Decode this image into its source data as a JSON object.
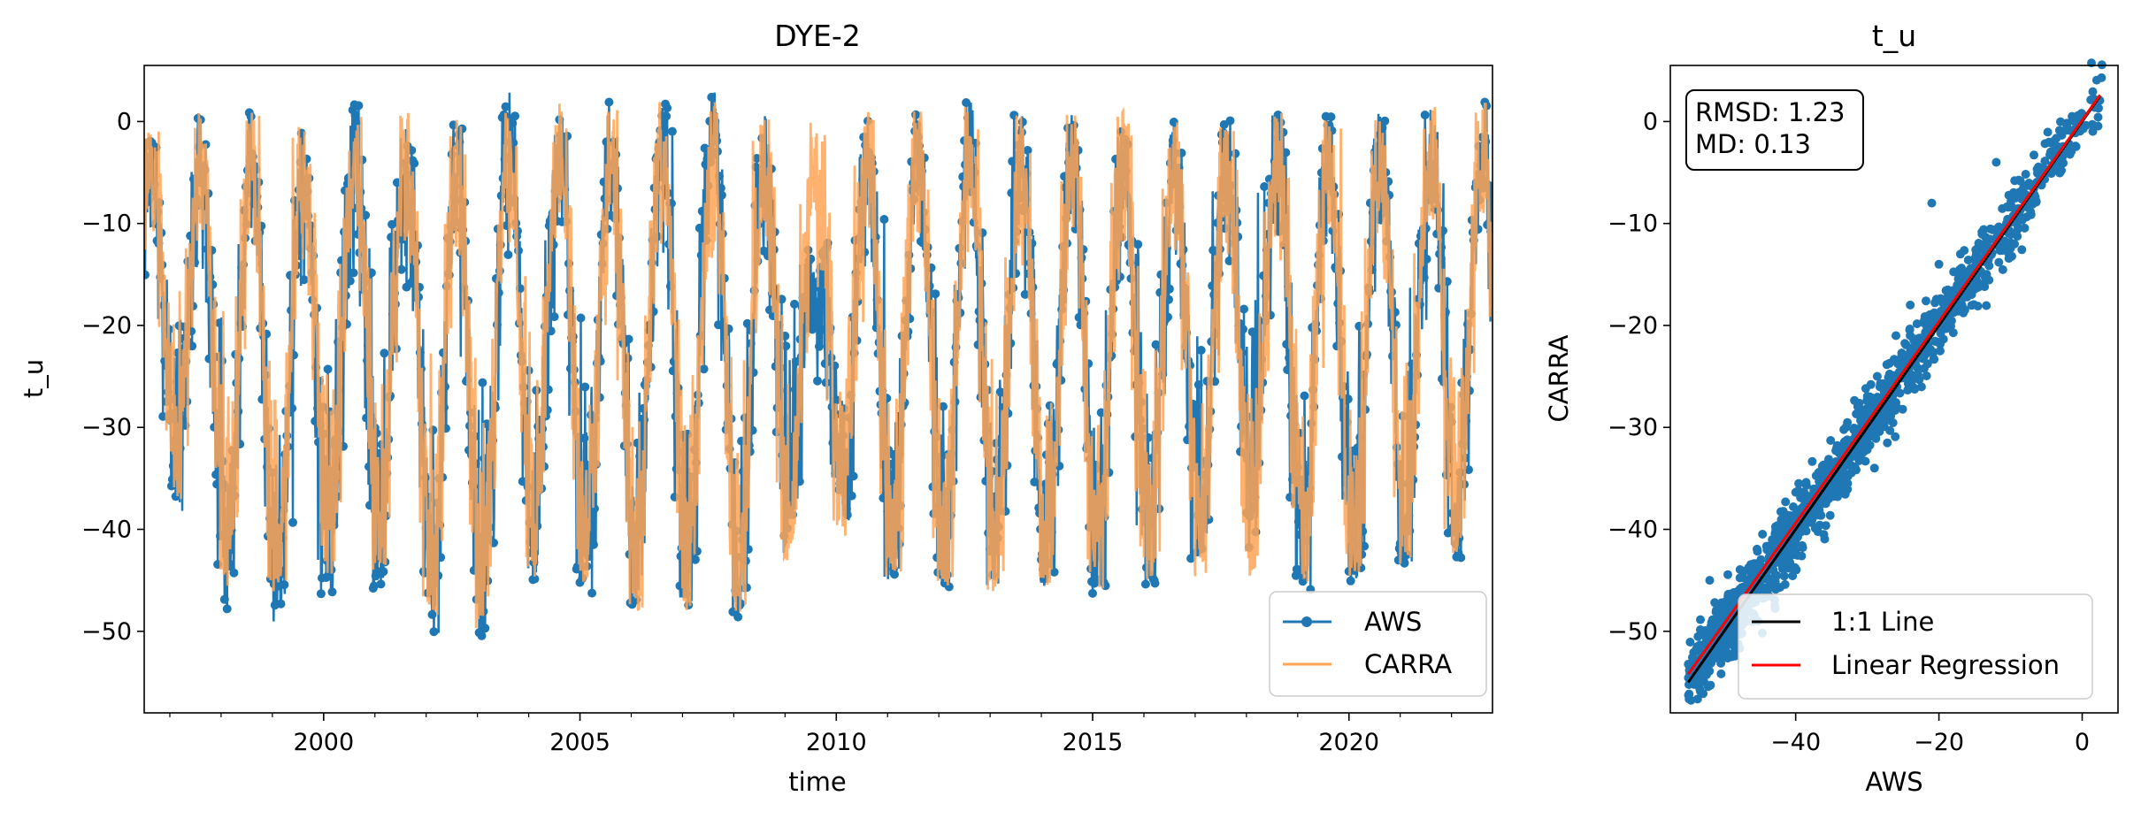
{
  "chart_data": [
    {
      "type": "line",
      "title": "DYE-2",
      "xlabel": "time",
      "ylabel": "t_u",
      "xlim": [
        1996.5,
        2022.8
      ],
      "ylim": [
        -58,
        5.5
      ],
      "x_tick_labels": [
        "2000",
        "2005",
        "2010",
        "2015",
        "2020"
      ],
      "x_ticks": [
        2000,
        2005,
        2010,
        2015,
        2020
      ],
      "y_tick_labels": [
        "0",
        "−10",
        "−20",
        "−30",
        "−40",
        "−50"
      ],
      "y_ticks": [
        0,
        -10,
        -20,
        -30,
        -40,
        -50
      ],
      "legend_position": "lower-right",
      "colors": {
        "AWS": "#1f77b4",
        "CARRA": "#ffa354"
      },
      "series": [
        {
          "name": "AWS",
          "style": "line-with-markers",
          "summary_extremes": [
            {
              "year": 1996.7,
              "max": -1,
              "min": -31
            },
            {
              "year": 1997.6,
              "max": 1,
              "min": -44
            },
            {
              "year": 1998.6,
              "max": 2,
              "min": -52
            },
            {
              "year": 1999.6,
              "max": 0,
              "min": -46
            },
            {
              "year": 2000.6,
              "max": 2,
              "min": -47
            },
            {
              "year": 2001.6,
              "max": 1,
              "min": -44
            },
            {
              "year": 2002.6,
              "max": 1,
              "min": -55
            },
            {
              "year": 2003.6,
              "max": 3,
              "min": -47
            },
            {
              "year": 2004.6,
              "max": 2,
              "min": -44
            },
            {
              "year": 2005.6,
              "max": 2,
              "min": -48
            },
            {
              "year": 2006.6,
              "max": 2,
              "min": -47
            },
            {
              "year": 2007.6,
              "max": 3,
              "min": -48
            },
            {
              "year": 2008.6,
              "max": 2,
              "min": -50
            },
            {
              "year": 2009.6,
              "max": -15,
              "min": -30
            },
            {
              "year": 2010.6,
              "max": 1,
              "min": -46
            },
            {
              "year": 2011.6,
              "max": 1,
              "min": -44
            },
            {
              "year": 2012.6,
              "max": 2,
              "min": -47
            },
            {
              "year": 2013.6,
              "max": 1,
              "min": -46
            },
            {
              "year": 2014.6,
              "max": 1,
              "min": -46
            },
            {
              "year": 2015.6,
              "max": 1,
              "min": -47
            },
            {
              "year": 2016.6,
              "max": 0,
              "min": -45
            },
            {
              "year": 2017.6,
              "max": 0,
              "min": -40
            },
            {
              "year": 2018.6,
              "max": 1,
              "min": -44
            },
            {
              "year": 2019.6,
              "max": 1,
              "min": -47
            },
            {
              "year": 2020.6,
              "max": 1,
              "min": -43
            },
            {
              "year": 2021.6,
              "max": 2,
              "min": -44
            },
            {
              "year": 2022.6,
              "max": 2,
              "min": -42
            }
          ]
        },
        {
          "name": "CARRA",
          "style": "line",
          "summary_extremes": [
            {
              "year": 1996.7,
              "max": -1,
              "min": -30
            },
            {
              "year": 1997.6,
              "max": 1,
              "min": -44
            },
            {
              "year": 1998.6,
              "max": 1,
              "min": -47
            },
            {
              "year": 1999.6,
              "max": 0,
              "min": -45
            },
            {
              "year": 2000.6,
              "max": 1,
              "min": -44
            },
            {
              "year": 2001.6,
              "max": 1,
              "min": -44
            },
            {
              "year": 2002.6,
              "max": 1,
              "min": -52
            },
            {
              "year": 2003.6,
              "max": 2,
              "min": -46
            },
            {
              "year": 2004.6,
              "max": 2,
              "min": -44
            },
            {
              "year": 2005.6,
              "max": 1,
              "min": -47
            },
            {
              "year": 2006.6,
              "max": 2,
              "min": -49
            },
            {
              "year": 2007.6,
              "max": 2,
              "min": -48
            },
            {
              "year": 2008.6,
              "max": 1,
              "min": -49
            },
            {
              "year": 2009.6,
              "max": 0,
              "min": -36
            },
            {
              "year": 2010.6,
              "max": 1,
              "min": -45
            },
            {
              "year": 2011.6,
              "max": 1,
              "min": -44
            },
            {
              "year": 2012.6,
              "max": 3,
              "min": -47
            },
            {
              "year": 2013.6,
              "max": 1,
              "min": -45
            },
            {
              "year": 2014.6,
              "max": 1,
              "min": -46
            },
            {
              "year": 2015.6,
              "max": 1,
              "min": -46
            },
            {
              "year": 2016.6,
              "max": 0,
              "min": -44
            },
            {
              "year": 2017.6,
              "max": 0,
              "min": -46
            },
            {
              "year": 2018.6,
              "max": 1,
              "min": -44
            },
            {
              "year": 2019.6,
              "max": 1,
              "min": -46
            },
            {
              "year": 2020.6,
              "max": 1,
              "min": -43
            },
            {
              "year": 2021.6,
              "max": 2,
              "min": -44
            },
            {
              "year": 2022.6,
              "max": 2,
              "min": -42
            }
          ]
        }
      ]
    },
    {
      "type": "scatter",
      "title": "t_u",
      "xlabel": "AWS",
      "ylabel": "CARRA",
      "xlim": [
        -57.5,
        5
      ],
      "ylim": [
        -58,
        5.5
      ],
      "x_tick_labels": [
        "−40",
        "−20",
        "0"
      ],
      "x_ticks": [
        -40,
        -20,
        0
      ],
      "y_tick_labels": [
        "0",
        "−10",
        "−20",
        "−30",
        "−40",
        "−50"
      ],
      "y_ticks": [
        0,
        -10,
        -20,
        -30,
        -40,
        -50
      ],
      "legend_position": "lower-right",
      "stats": {
        "rmsd": "RMSD: 1.23",
        "md": "MD: 0.13"
      },
      "colors": {
        "points": "#1f77b4",
        "one_to_one": "#000000",
        "regression": "#ff0000"
      },
      "series": [
        {
          "name": "1:1 Line",
          "type": "line",
          "x": [
            -55,
            2.5
          ],
          "y": [
            -55,
            2.5
          ]
        },
        {
          "name": "Linear Regression",
          "type": "line",
          "x": [
            -55,
            2.5
          ],
          "y": [
            -54.2,
            2.6
          ]
        }
      ],
      "point_cloud": {
        "x_range": [
          -55,
          3
        ],
        "spread_core": 1.2,
        "outliers": [
          {
            "x": -21,
            "y": -8
          },
          {
            "x": -20,
            "y": -14
          },
          {
            "x": -17,
            "y": -13
          },
          {
            "x": -24,
            "y": -18
          },
          {
            "x": -12,
            "y": -4
          },
          {
            "x": -26,
            "y": -21
          },
          {
            "x": -33,
            "y": -30
          },
          {
            "x": -29,
            "y": -34
          },
          {
            "x": -52,
            "y": -45
          },
          {
            "x": -48,
            "y": -47
          },
          {
            "x": -49,
            "y": -51
          },
          {
            "x": -54,
            "y": -54
          },
          {
            "x": -37,
            "y": -36
          },
          {
            "x": -44,
            "y": -42
          },
          {
            "x": -46,
            "y": -49
          }
        ]
      }
    }
  ]
}
